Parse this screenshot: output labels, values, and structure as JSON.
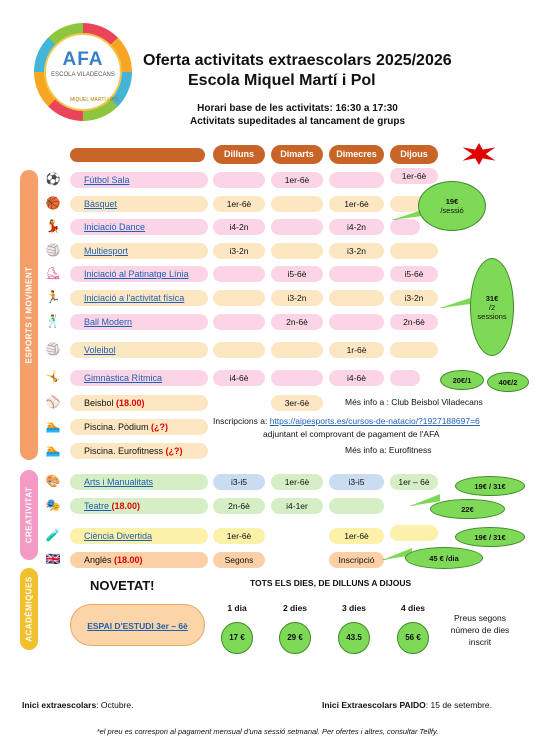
{
  "logo": {
    "text": "AFA",
    "subtext": "ESCOLA VILADECANS",
    "ring_text": "MIQUEL MARTÍ I POL"
  },
  "header": {
    "title_line1": "Oferta activitats extraescolars 2025/2026",
    "title_line2": "Escola Miquel Martí i Pol",
    "hours": "Horari base de les activitats: 16:30 a 17:30",
    "notice": "Activitats supeditades al tancament de grups"
  },
  "days": [
    "Dilluns",
    "Dimarts",
    "Dimecres",
    "Dijous"
  ],
  "sections": {
    "esports": "ESPORTS I MOVIMENT",
    "creativitat": "CREATIVITAT",
    "academiques": "ACADÈMIQUES"
  },
  "activities": [
    {
      "name": "Fútbol Sala",
      "price": "",
      "icon": "soccer-ball-icon",
      "cells": [
        "",
        "1er-6è",
        "",
        "1er-6è"
      ]
    },
    {
      "name": "Bàsquet",
      "price": "",
      "icon": "basketball-icon",
      "cells": [
        "1er-6è",
        "",
        "1er-6è",
        ""
      ]
    },
    {
      "name": "Iniciació Dance",
      "price": "",
      "icon": "dancer-icon",
      "cells": [
        "i4-2n",
        "",
        "i4-2n",
        ""
      ]
    },
    {
      "name": "Multiesport",
      "price": "",
      "icon": "multisport-icon",
      "cells": [
        "i3-2n",
        "",
        "i3-2n",
        ""
      ]
    },
    {
      "name": "Iniciació al Patinatge Línia",
      "price": "",
      "icon": "skate-icon",
      "cells": [
        "",
        "i5-6è",
        "",
        "i5-6è"
      ]
    },
    {
      "name": "Iniciació a l'activitat física",
      "price": "",
      "icon": "running-icon",
      "cells": [
        "",
        "i3-2n",
        "",
        "i3-2n"
      ]
    },
    {
      "name": "Ball Modern",
      "price": "",
      "icon": "modern-dance-icon",
      "cells": [
        "",
        "2n-6è",
        "",
        "2n-6è"
      ]
    },
    {
      "name": "Voleibol",
      "price": "",
      "icon": "volleyball-icon",
      "cells": [
        "",
        "",
        "1r-6è",
        ""
      ]
    },
    {
      "name": "Gimnàstica Rítmica",
      "price": "",
      "icon": "gymnastics-icon",
      "cells": [
        "i4-6è",
        "",
        "i4-6è",
        ""
      ]
    },
    {
      "name": "Beisbol ",
      "price": "(18.00)",
      "icon": "baseball-icon",
      "cells": [
        "",
        "3er-6è",
        "",
        ""
      ]
    },
    {
      "name": "Piscina. Pòdium ",
      "price": "(¿?)",
      "icon": "swimming-icon",
      "cells": [
        "",
        "",
        "",
        ""
      ]
    },
    {
      "name": "Piscina. Eurofitness ",
      "price": "(¿?)",
      "icon": "swimming-icon",
      "cells": [
        "",
        "",
        "",
        ""
      ]
    },
    {
      "name": "Arts i Manualitats",
      "price": "",
      "icon": "palette-icon",
      "cells": [
        "i3-i5",
        "1er-6è",
        "i3-i5",
        "1er – 6è"
      ]
    },
    {
      "name": "Teatre ",
      "price": "(18.00)",
      "icon": "theatre-masks-icon",
      "cells": [
        "2n-6è",
        "i4-1er",
        "",
        ""
      ]
    },
    {
      "name": "Ciència Divertida",
      "price": "",
      "icon": "test-tube-icon",
      "cells": [
        "1er-6è",
        "",
        "1er-6è",
        ""
      ]
    },
    {
      "name": "Anglès ",
      "price": "(18.00)",
      "icon": "uk-flag-icon",
      "cells": [
        "Segons",
        "",
        "Inscripció",
        ""
      ]
    }
  ],
  "bubbles": {
    "b1_price": "19€",
    "b1_unit": "/sessió",
    "b2_price": "31€",
    "b2_unit": "/2",
    "b2_unit2": "sessions",
    "b3": "20€/1",
    "b4": "40€/2",
    "b5": "19€ / 31€",
    "b6": "22€",
    "b7": "19€ / 31€",
    "b8": "45 € /dia"
  },
  "info": {
    "beisbol": "Més info a : Club Beisbol Viladecans",
    "inscripcions_label": "Inscripcions a: ",
    "inscripcions_url": "https://aipesports.es/cursos-de-natacio/?1927188697=6",
    "comprovant": "adjuntant el comprovant de pagament de l'AFA",
    "eurofitness": "Més info a: Eurofitness"
  },
  "academic": {
    "novetat": "NOVETAT!",
    "estudi": "ESPAI D'ESTUDI 3er – 6è",
    "tots": "TOTS ELS DIES, DE DILLUNS A DIJOUS",
    "options": [
      {
        "label": "1 dia",
        "price": "17 €"
      },
      {
        "label": "2 dies",
        "price": "29 €"
      },
      {
        "label": "3 dies",
        "price": "43.5"
      },
      {
        "label": "4 dies",
        "price": "56 €"
      }
    ],
    "preus": "Preus segons número de dies inscrit"
  },
  "footer": {
    "inici_label": "Inici extraescolars",
    "inici_value": ": Octubre.",
    "paido_label": "Inici Extraescolars PAIDO",
    "paido_value": ": 15 de setembre.",
    "note": "*el preu es correspon al pagament mensual d'una sessió setmanal. Per ofertes i altres, consultar Tellfy."
  },
  "colors": {
    "orange_header": "#c86428",
    "esports": "#f5a06a",
    "creativitat": "#f39bc4",
    "academiques": "#f3c02d",
    "green_bubble": "#7ed957",
    "red_price": "#e00000"
  }
}
